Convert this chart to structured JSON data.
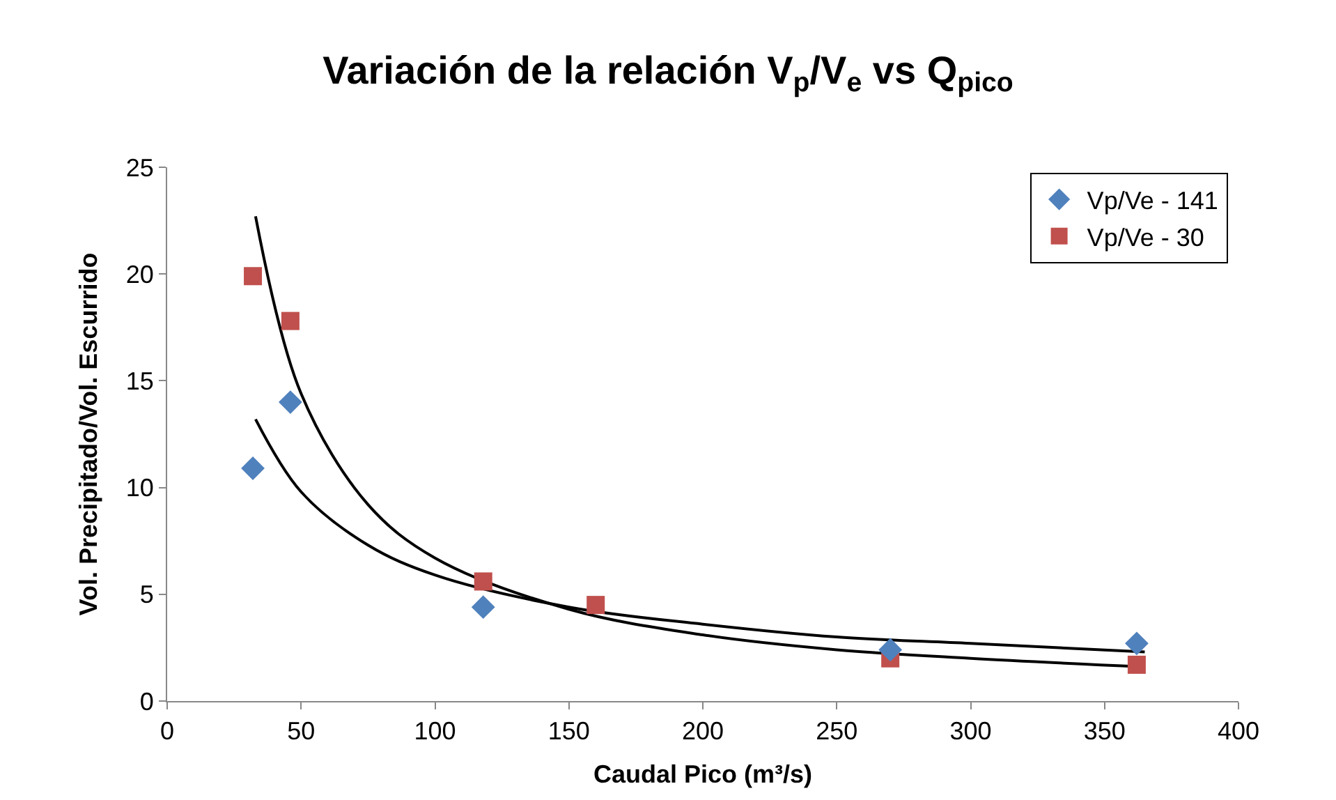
{
  "chart_data": {
    "type": "scatter",
    "title": "Variación de la relación V$_{p}$/V$_{e}$ vs Q$_{pico}$",
    "xlabel": "Caudal Pico (m³/s)",
    "ylabel": "Vol. Precipitado/Vol. Escurrido",
    "xlim": [
      0,
      400
    ],
    "xticks": [
      0,
      50,
      100,
      150,
      200,
      250,
      300,
      350,
      400
    ],
    "ylim": [
      0,
      25
    ],
    "yticks": [
      0,
      5,
      10,
      15,
      20,
      25
    ],
    "grid": false,
    "legend": "top right",
    "series": [
      {
        "name": "Vp/Ve - 141",
        "color": "#4f81bd",
        "marker": "diamond",
        "x": [
          32,
          46,
          118,
          270,
          362
        ],
        "values": [
          10.9,
          14.0,
          4.4,
          2.4,
          2.7
        ]
      },
      {
        "name": "Vp/Ve - 30",
        "color": "#c0504d",
        "marker": "square",
        "x": [
          32,
          46,
          118,
          160,
          270,
          362
        ],
        "values": [
          19.9,
          17.8,
          5.6,
          4.5,
          2.0,
          1.7
        ]
      },
      {
        "type": "line",
        "color": "#000000",
        "marker": "none",
        "x": [
          33,
          50,
          75,
          100,
          150,
          200,
          250,
          300,
          365
        ],
        "values": [
          13.2,
          9.8,
          7.3,
          5.9,
          4.4,
          3.6,
          3.0,
          2.7,
          2.3
        ]
      },
      {
        "type": "line",
        "color": "#000000",
        "marker": "none",
        "x": [
          33,
          50,
          75,
          100,
          150,
          200,
          250,
          300,
          365
        ],
        "values": [
          22.7,
          14.4,
          9.2,
          6.7,
          4.3,
          3.1,
          2.4,
          2.0,
          1.6
        ]
      }
    ]
  }
}
